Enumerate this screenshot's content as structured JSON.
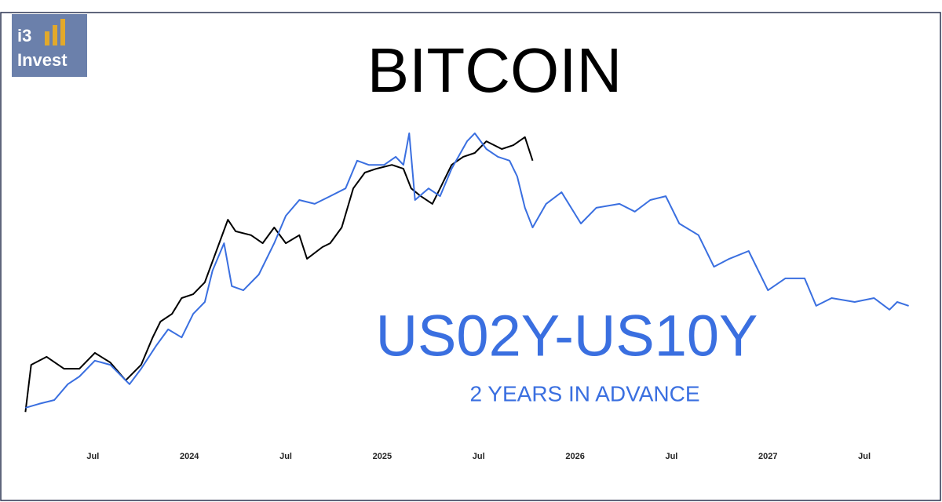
{
  "logo": {
    "line1": "i3",
    "line2": "Invest"
  },
  "chart_data": {
    "type": "line",
    "annotation": "2 YEARS IN ADVANCE",
    "xlim": [
      2023.12,
      2027.76
    ],
    "xticks": [
      {
        "value": 2023.5,
        "label": "Jul"
      },
      2024,
      {
        "value": 2024.5,
        "label": "Jul"
      },
      2025,
      {
        "value": 2025.5,
        "label": "Jul"
      },
      2026,
      {
        "value": 2026.5,
        "label": "Jul"
      },
      2027,
      {
        "value": 2027.5,
        "label": "Jul"
      }
    ],
    "ylim": [
      0,
      100
    ],
    "series": [
      {
        "name": "BITCOIN",
        "color": "#000000",
        "x": [
          2023.15,
          2023.18,
          2023.26,
          2023.35,
          2023.43,
          2023.51,
          2023.59,
          2023.67,
          2023.75,
          2023.81,
          2023.85,
          2023.91,
          2023.96,
          2024.02,
          2024.08,
          2024.14,
          2024.2,
          2024.24,
          2024.32,
          2024.38,
          2024.44,
          2024.5,
          2024.57,
          2024.61,
          2024.69,
          2024.73,
          2024.79,
          2024.85,
          2024.91,
          2024.97,
          2025.05,
          2025.11,
          2025.15,
          2025.2,
          2025.26,
          2025.3,
          2025.36,
          2025.42,
          2025.48,
          2025.54,
          2025.62,
          2025.68,
          2025.74,
          2025.78
        ],
        "values": [
          3.9,
          19.7,
          22.4,
          18.4,
          18.4,
          23.7,
          20.5,
          14.5,
          19.7,
          28.9,
          34.2,
          36.8,
          42.1,
          43.4,
          47.4,
          57.9,
          68.4,
          64.5,
          63.2,
          60.5,
          65.8,
          60.5,
          63.2,
          55.3,
          59.2,
          60.5,
          65.8,
          78.9,
          84.2,
          85.5,
          86.8,
          85.5,
          78.9,
          76.3,
          73.7,
          78.9,
          86.8,
          89.5,
          90.8,
          94.7,
          92.1,
          93.4,
          96.1,
          88.2
        ]
      },
      {
        "name": "US02Y-US10Y",
        "color": "#3a6fe0",
        "x": [
          2023.15,
          2023.22,
          2023.3,
          2023.37,
          2023.43,
          2023.51,
          2023.59,
          2023.69,
          2023.75,
          2023.83,
          2023.89,
          2023.96,
          2024.02,
          2024.08,
          2024.12,
          2024.18,
          2024.22,
          2024.28,
          2024.36,
          2024.44,
          2024.5,
          2024.57,
          2024.65,
          2024.73,
          2024.81,
          2024.87,
          2024.93,
          2025.01,
          2025.07,
          2025.11,
          2025.14,
          2025.17,
          2025.24,
          2025.3,
          2025.36,
          2025.44,
          2025.48,
          2025.54,
          2025.6,
          2025.66,
          2025.7,
          2025.74,
          2025.78,
          2025.85,
          2025.93,
          2026.03,
          2026.11,
          2026.23,
          2026.31,
          2026.39,
          2026.47,
          2026.54,
          2026.64,
          2026.72,
          2026.8,
          2026.9,
          2027.0,
          2027.09,
          2027.19,
          2027.25,
          2027.33,
          2027.45,
          2027.55,
          2027.63,
          2027.67,
          2027.73
        ],
        "values": [
          5.3,
          6.6,
          7.9,
          13.2,
          15.8,
          21.1,
          19.7,
          13.2,
          18.4,
          26.3,
          31.6,
          28.9,
          36.8,
          40.8,
          51.3,
          60.5,
          46.1,
          44.7,
          50.0,
          60.5,
          69.7,
          75.0,
          73.7,
          76.3,
          78.9,
          88.2,
          86.8,
          86.8,
          89.5,
          86.8,
          97.4,
          75.0,
          78.9,
          76.3,
          85.5,
          94.7,
          97.4,
          92.1,
          89.5,
          88.2,
          82.9,
          72.4,
          65.8,
          73.7,
          77.6,
          67.1,
          72.4,
          73.7,
          71.1,
          75.0,
          76.3,
          67.1,
          63.2,
          52.6,
          55.3,
          57.9,
          44.7,
          48.7,
          48.7,
          39.5,
          42.1,
          40.8,
          42.1,
          38.2,
          40.8,
          39.5
        ]
      }
    ]
  }
}
